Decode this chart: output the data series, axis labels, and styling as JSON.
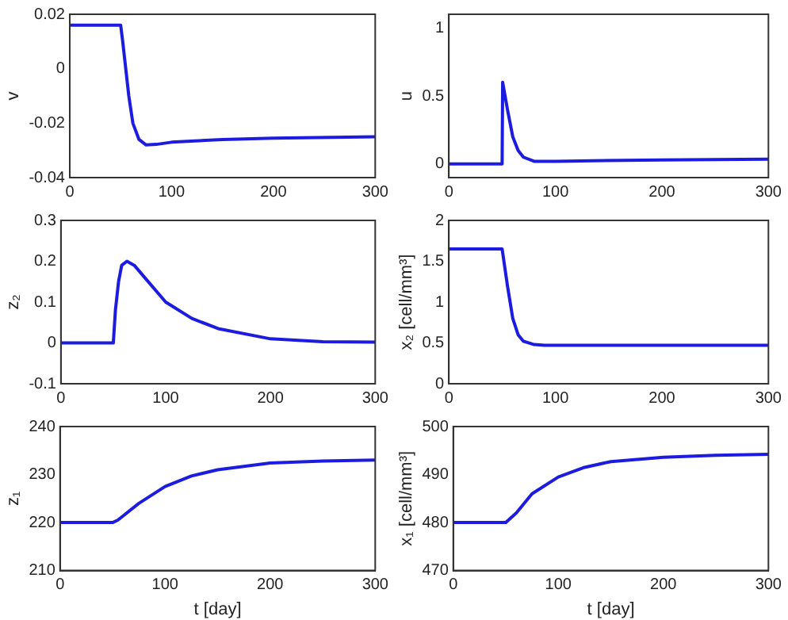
{
  "chart_data": [
    {
      "type": "line",
      "ylabel": "v",
      "xlim": [
        0,
        300
      ],
      "xticks": [
        0,
        100,
        200,
        300
      ],
      "ylim": [
        -0.04,
        0.02
      ],
      "yticks": [
        -0.04,
        -0.02,
        0,
        0.02
      ],
      "series": [
        {
          "color": "#1c1ce0",
          "x": [
            0,
            50,
            52,
            55,
            58,
            62,
            68,
            75,
            85,
            100,
            150,
            200,
            300
          ],
          "values": [
            0.016,
            0.016,
            0.01,
            0,
            -0.01,
            -0.02,
            -0.026,
            -0.028,
            -0.0278,
            -0.027,
            -0.026,
            -0.0255,
            -0.025
          ]
        }
      ]
    },
    {
      "type": "line",
      "ylabel": "u",
      "xlim": [
        0,
        300
      ],
      "xticks": [
        0,
        100,
        200,
        300
      ],
      "ylim": [
        -0.1,
        1.1
      ],
      "yticks": [
        0,
        0.5,
        1
      ],
      "series": [
        {
          "color": "#1c1ce0",
          "x": [
            0,
            50,
            50.5,
            55,
            60,
            65,
            70,
            80,
            100,
            200,
            300
          ],
          "values": [
            0,
            0,
            0.6,
            0.4,
            0.2,
            0.1,
            0.05,
            0.02,
            0.02,
            0.03,
            0.035
          ]
        }
      ]
    },
    {
      "type": "line",
      "ylabel": "z₂",
      "xlim": [
        0,
        300
      ],
      "xticks": [
        0,
        100,
        200,
        300
      ],
      "ylim": [
        -0.1,
        0.3
      ],
      "yticks": [
        -0.1,
        0,
        0.1,
        0.2,
        0.3
      ],
      "series": [
        {
          "color": "#1c1ce0",
          "x": [
            0,
            50,
            52,
            55,
            58,
            63,
            70,
            80,
            100,
            125,
            150,
            200,
            250,
            300
          ],
          "values": [
            0,
            0,
            0.08,
            0.15,
            0.19,
            0.2,
            0.19,
            0.16,
            0.1,
            0.06,
            0.035,
            0.01,
            0.003,
            0.002
          ]
        }
      ]
    },
    {
      "type": "line",
      "ylabel": "x₂ [cell/mm³]",
      "xlim": [
        0,
        300
      ],
      "xticks": [
        0,
        100,
        200,
        300
      ],
      "ylim": [
        0,
        2
      ],
      "yticks": [
        0,
        0.5,
        1,
        1.5,
        2
      ],
      "series": [
        {
          "color": "#1c1ce0",
          "x": [
            0,
            50,
            55,
            60,
            65,
            70,
            80,
            90,
            300
          ],
          "values": [
            1.65,
            1.65,
            1.2,
            0.8,
            0.6,
            0.52,
            0.48,
            0.47,
            0.47
          ]
        }
      ]
    },
    {
      "type": "line",
      "ylabel": "z₁",
      "xlabel": "t [day]",
      "xlim": [
        0,
        300
      ],
      "xticks": [
        0,
        100,
        200,
        300
      ],
      "ylim": [
        210,
        240
      ],
      "yticks": [
        210,
        220,
        230,
        240
      ],
      "series": [
        {
          "color": "#1c1ce0",
          "x": [
            0,
            50,
            55,
            75,
            100,
            125,
            150,
            200,
            250,
            300
          ],
          "values": [
            220,
            220,
            220.5,
            224,
            227.5,
            229.7,
            231,
            232.4,
            232.8,
            233
          ]
        }
      ]
    },
    {
      "type": "line",
      "ylabel": "x₁ [cell/mm³]",
      "xlabel": "t [day]",
      "xlim": [
        0,
        300
      ],
      "xticks": [
        0,
        100,
        200,
        300
      ],
      "ylim": [
        470,
        500
      ],
      "yticks": [
        470,
        480,
        490,
        500
      ],
      "series": [
        {
          "color": "#1c1ce0",
          "x": [
            0,
            50,
            60,
            75,
            100,
            125,
            150,
            200,
            250,
            300
          ],
          "values": [
            480,
            480,
            482,
            486,
            489.5,
            491.5,
            492.7,
            493.6,
            494,
            494.2
          ]
        }
      ]
    }
  ]
}
